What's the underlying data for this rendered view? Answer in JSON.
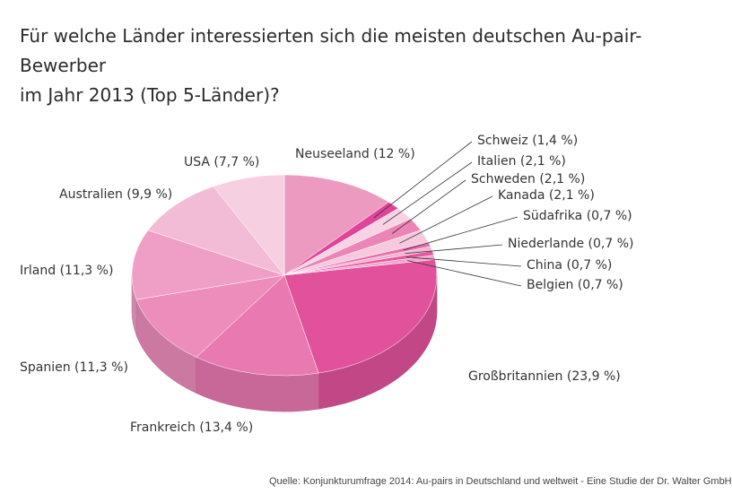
{
  "title_lines": [
    "Für welche Länder interessierten sich die meisten deutschen Au-pair-Bewerber",
    "im Jahr 2013 (Top 5-Länder)?"
  ],
  "source": "Quelle: Konjunkturumfrage 2014: Au-pairs in Deutschland und weltweit - Eine Studie der Dr. Walter GmbH",
  "chart_data": {
    "type": "pie",
    "title": "Für welche Länder interessierten sich die meisten deutschen Au-pair-Bewerber im Jahr 2013 (Top 5-Länder)?",
    "style": "3d",
    "unit": "%",
    "slices": [
      {
        "name": "Neuseeland",
        "value": 12,
        "label": "Neuseeland (12 %)",
        "color": "#ec9ac0"
      },
      {
        "name": "Schweiz",
        "value": 1.4,
        "label": "Schweiz (1,4 %)",
        "color": "#e0449a"
      },
      {
        "name": "Italien",
        "value": 2.1,
        "label": "Italien (2,1 %)",
        "color": "#f7d3e4"
      },
      {
        "name": "Schweden",
        "value": 2.1,
        "label": "Schweden (2,1 %)",
        "color": "#ec84b6"
      },
      {
        "name": "Kanada",
        "value": 2.1,
        "label": "Kanada (2,1 %)",
        "color": "#f6c9de"
      },
      {
        "name": "Südafrika",
        "value": 0.7,
        "label": "Südafrika (0,7 %)",
        "color": "#e76fab"
      },
      {
        "name": "Niederlande",
        "value": 0.7,
        "label": "Niederlande (0,7 %)",
        "color": "#f3b3d1"
      },
      {
        "name": "China",
        "value": 0.7,
        "label": "China (0,7 %)",
        "color": "#e5589f"
      },
      {
        "name": "Belgien",
        "value": 0.7,
        "label": "Belgien (0,7 %)",
        "color": "#f1a6ca"
      },
      {
        "name": "Großbritannien",
        "value": 23.9,
        "label": "Großbritannien (23,9 %)",
        "color": "#e2529c"
      },
      {
        "name": "Frankreich",
        "value": 13.4,
        "label": "Frankreich (13,4 %)",
        "color": "#e979b1"
      },
      {
        "name": "Spanien",
        "value": 11.3,
        "label": "Spanien (11,3 %)",
        "color": "#ec8dbb"
      },
      {
        "name": "Irland",
        "value": 11.3,
        "label": "Irland (11,3 %)",
        "color": "#ef9fc6"
      },
      {
        "name": "Australien",
        "value": 9.9,
        "label": "Australien (9,9 %)",
        "color": "#f3bcd6"
      },
      {
        "name": "USA",
        "value": 7.7,
        "label": "USA (7,7 %)",
        "color": "#f6cfe1"
      }
    ]
  }
}
